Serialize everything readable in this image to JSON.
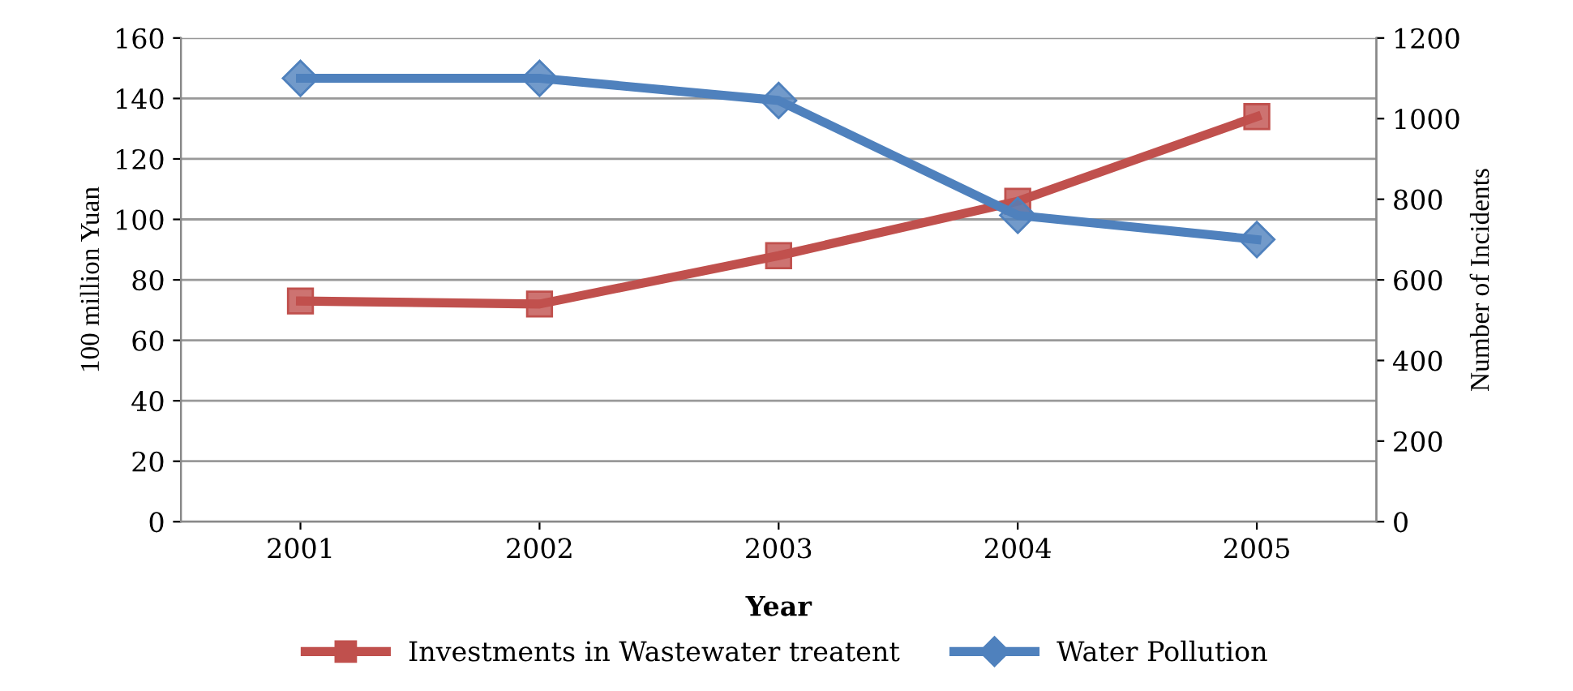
{
  "chart_data": {
    "type": "line",
    "xlabel": "Year",
    "ylabel": "100 million Yuan",
    "y2label": "Number of Incidents",
    "categories": [
      "2001",
      "2002",
      "2003",
      "2004",
      "2005"
    ],
    "series": [
      {
        "name": "Investments in Wastewater treatent",
        "color": "#c0504d",
        "marker": "square",
        "values": [
          73,
          72,
          88,
          106,
          134
        ]
      },
      {
        "name": "Water Pollution",
        "color": "#4f81bd",
        "marker": "diamond",
        "axis": "y2",
        "values": [
          1100,
          1100,
          1045,
          760,
          700
        ]
      }
    ],
    "ylim": [
      0,
      160
    ],
    "yticks": [
      0,
      20,
      40,
      60,
      80,
      100,
      120,
      140,
      160
    ],
    "y2lim": [
      0,
      1200
    ],
    "y2ticks": [
      0,
      200,
      400,
      600,
      800,
      1000,
      1200
    ],
    "grid": "y",
    "legend": "bottom"
  }
}
